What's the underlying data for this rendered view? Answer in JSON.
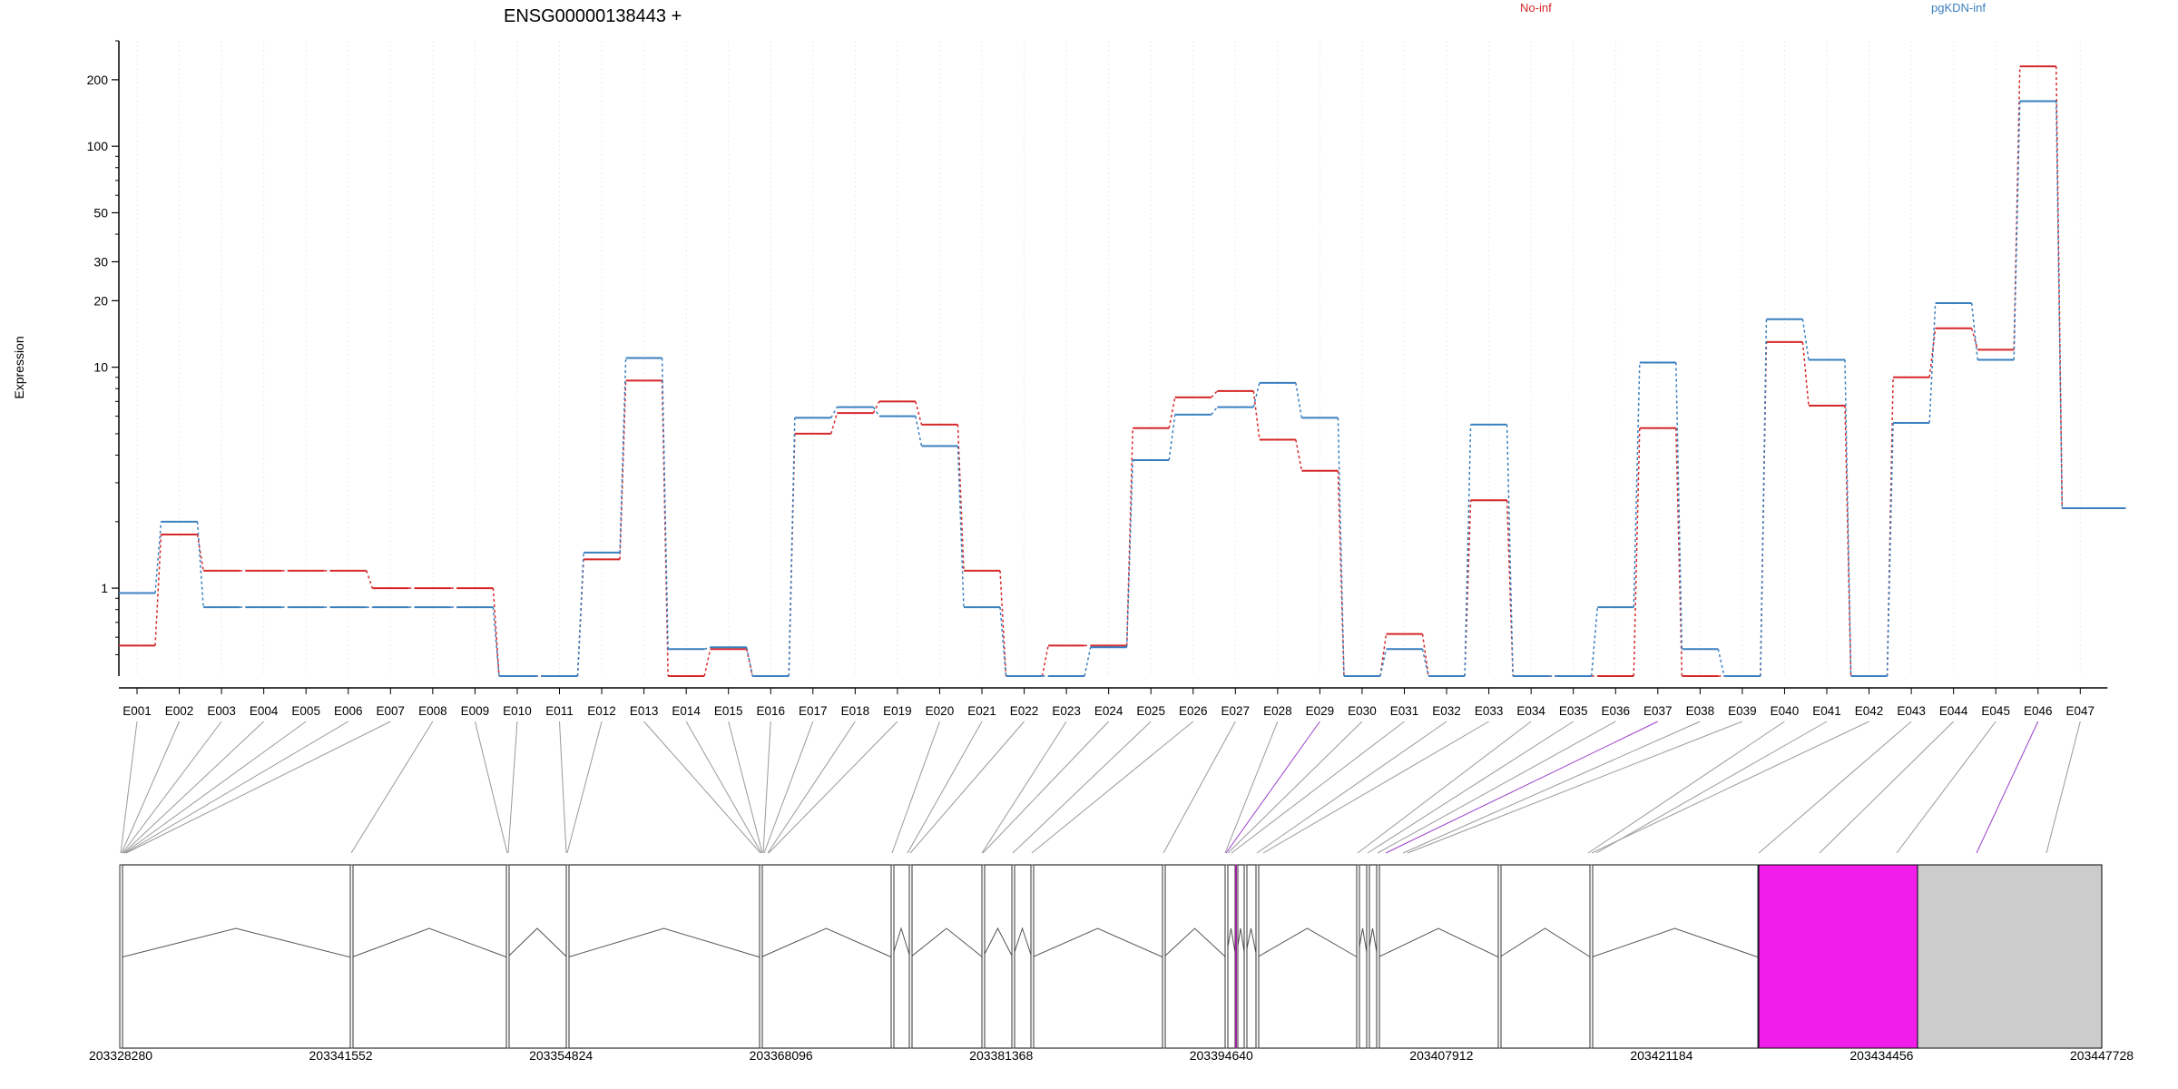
{
  "chart_data": {
    "type": "line",
    "title": "ENSG00000138443 +",
    "ylabel": "Expression",
    "yscale": "log",
    "ylim": [
      0.4,
      300
    ],
    "yticks": [
      "1",
      "10",
      "20",
      "30",
      "50",
      "100",
      "200"
    ],
    "grid": true,
    "legend_placement": "top",
    "categories": [
      "E001",
      "E002",
      "E003",
      "E004",
      "E005",
      "E006",
      "E007",
      "E008",
      "E009",
      "E010",
      "E011",
      "E012",
      "E013",
      "E014",
      "E015",
      "E016",
      "E017",
      "E018",
      "E019",
      "E020",
      "E021",
      "E022",
      "E023",
      "E024",
      "E025",
      "E026",
      "E027",
      "E028",
      "E029",
      "E030",
      "E031",
      "E032",
      "E033",
      "E034",
      "E035",
      "E036",
      "E037",
      "E038",
      "E039",
      "E040",
      "E041",
      "E042",
      "E043",
      "E044",
      "E045",
      "E046",
      "E047"
    ],
    "series": [
      {
        "name": "No-inf",
        "color": "#d62728",
        "values": [
          0.55,
          1.75,
          1.2,
          1.2,
          1.2,
          1.2,
          1.0,
          1.0,
          1.0,
          0.4,
          0.4,
          1.35,
          8.7,
          0.4,
          0.53,
          0.4,
          5.0,
          6.2,
          7.0,
          5.5,
          1.2,
          0.4,
          0.55,
          0.55,
          5.3,
          7.3,
          7.8,
          4.7,
          3.4,
          0.4,
          0.62,
          0.4,
          2.5,
          0.4,
          0.4,
          0.4,
          5.3,
          0.4,
          0.4,
          13.0,
          6.7,
          0.4,
          9.0,
          15.0,
          12.0,
          230,
          2.3
        ]
      },
      {
        "name": "pgKDN-inf",
        "color": "#3a7fbf",
        "values": [
          0.95,
          2.0,
          0.82,
          0.82,
          0.82,
          0.82,
          0.82,
          0.82,
          0.82,
          0.4,
          0.4,
          1.45,
          11.0,
          0.53,
          0.54,
          0.4,
          5.9,
          6.6,
          6.0,
          4.4,
          0.82,
          0.4,
          0.4,
          0.54,
          3.8,
          6.1,
          6.6,
          8.5,
          5.9,
          0.4,
          0.53,
          0.4,
          5.5,
          0.4,
          0.4,
          0.82,
          10.5,
          0.53,
          0.4,
          16.5,
          10.8,
          0.4,
          5.6,
          19.5,
          10.8,
          160,
          2.3
        ]
      }
    ],
    "gene_model": {
      "genomic_ticks": [
        "203328280",
        "203341552",
        "203354824",
        "203368096",
        "203381368",
        "203394640",
        "203407912",
        "203421184",
        "203434456",
        "203447728"
      ],
      "range": [
        203328280,
        203447728
      ],
      "highlight_colors": {
        "magenta": "#f01ee8",
        "grey": "#cccccc"
      }
    }
  }
}
